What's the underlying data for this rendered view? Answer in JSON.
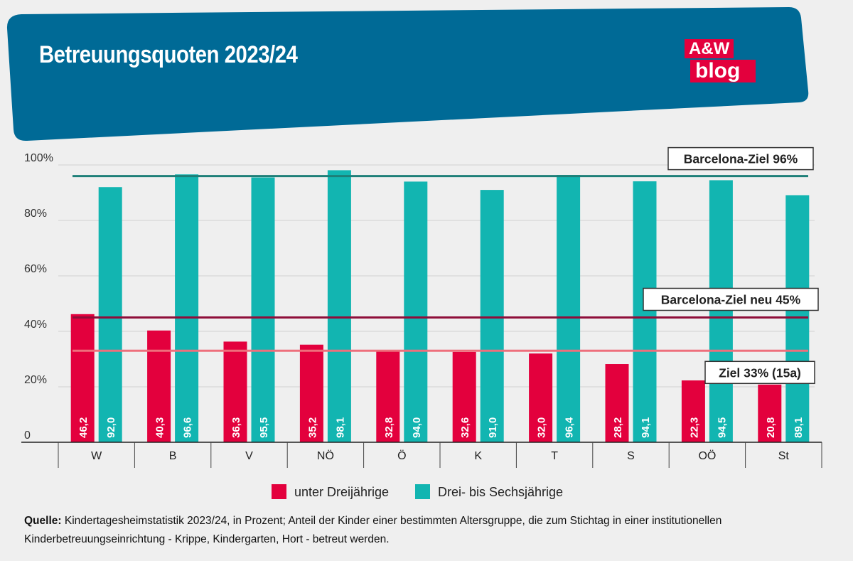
{
  "header": {
    "title": "Betreuungsquoten 2023/24",
    "logo_top": "A&W",
    "logo_bottom": "blog"
  },
  "colors": {
    "banner": "#006a96",
    "under3": "#e3003d",
    "three_to_six": "#12b5b1",
    "target96": "#1d7f78",
    "target45": "#8f0e3a",
    "target33": "#ee6f7c"
  },
  "chart_data": {
    "type": "bar",
    "title": "Betreuungsquoten 2023/24",
    "categories": [
      "W",
      "B",
      "V",
      "NÖ",
      "Ö",
      "K",
      "T",
      "S",
      "OÖ",
      "St"
    ],
    "series": [
      {
        "name": "unter Dreijährige",
        "values": [
          46.2,
          40.3,
          36.3,
          35.2,
          32.8,
          32.6,
          32.0,
          28.2,
          22.3,
          20.8
        ],
        "labels": [
          "46,2",
          "40,3",
          "36,3",
          "35,2",
          "32,8",
          "32,6",
          "32,0",
          "28,2",
          "22,3",
          "20,8"
        ]
      },
      {
        "name": "Drei- bis Sechsjährige",
        "values": [
          92.0,
          96.6,
          95.5,
          98.1,
          94.0,
          91.0,
          96.4,
          94.1,
          94.5,
          89.1
        ],
        "labels": [
          "92,0",
          "96,6",
          "95,5",
          "98,1",
          "94,0",
          "91,0",
          "96,4",
          "94,1",
          "94,5",
          "89,1"
        ]
      }
    ],
    "ylim": [
      0,
      100
    ],
    "yticks": [
      {
        "value": 0,
        "label": "0"
      },
      {
        "value": 20,
        "label": "20%"
      },
      {
        "value": 40,
        "label": "40%"
      },
      {
        "value": 60,
        "label": "60%"
      },
      {
        "value": 80,
        "label": "80%"
      },
      {
        "value": 100,
        "label": "100%"
      }
    ],
    "reference_lines": [
      {
        "value": 96,
        "label": "Barcelona-Ziel 96%"
      },
      {
        "value": 45,
        "label": "Barcelona-Ziel neu 45%"
      },
      {
        "value": 33,
        "label": "Ziel 33% (15a)"
      }
    ],
    "grid": true,
    "legend_position": "bottom"
  },
  "footer": {
    "source_label": "Quelle:",
    "source_text": " Kindertagesheimstatistik 2023/24, in Prozent; Anteil der Kinder einer bestimmten Altersgruppe, die zum Stichtag in einer institutionellen Kinderbetreuungseinrichtung - Krippe, Kindergarten, Hort - betreut werden."
  }
}
